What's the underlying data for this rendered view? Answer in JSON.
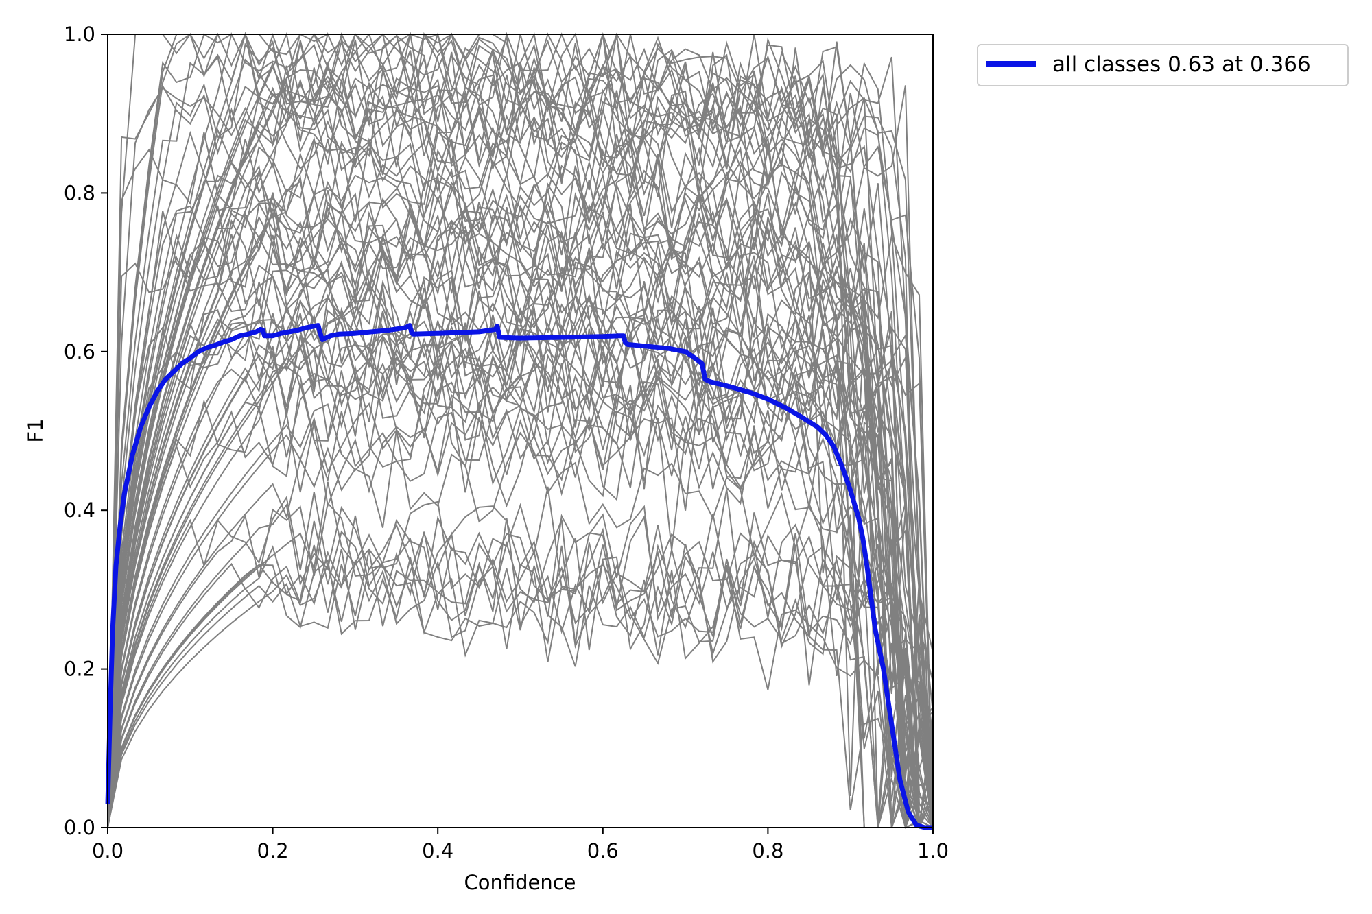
{
  "chart_data": {
    "type": "line",
    "title": "",
    "xlabel": "Confidence",
    "ylabel": "F1",
    "xlim": [
      0.0,
      1.0
    ],
    "ylim": [
      0.0,
      1.0
    ],
    "xticks": [
      "0.0",
      "0.2",
      "0.4",
      "0.6",
      "0.8",
      "1.0"
    ],
    "yticks": [
      "0.0",
      "0.2",
      "0.4",
      "0.6",
      "0.8",
      "1.0"
    ],
    "grid": false,
    "legend": {
      "placement": "outside-top-right",
      "entries": [
        "all classes 0.63 at 0.366"
      ]
    },
    "colors": {
      "per_class": "#808080",
      "all_classes": "#0a14e6"
    },
    "series": [
      {
        "name": "all classes 0.63 at 0.366",
        "color": "#0a14e6",
        "x": [
          0.0,
          0.003,
          0.006,
          0.01,
          0.015,
          0.02,
          0.03,
          0.04,
          0.05,
          0.06,
          0.07,
          0.08,
          0.09,
          0.1,
          0.11,
          0.12,
          0.13,
          0.14,
          0.15,
          0.16,
          0.17,
          0.18,
          0.185,
          0.188,
          0.19,
          0.2,
          0.21,
          0.22,
          0.23,
          0.24,
          0.25,
          0.255,
          0.257,
          0.26,
          0.27,
          0.28,
          0.3,
          0.32,
          0.34,
          0.36,
          0.366,
          0.368,
          0.37,
          0.4,
          0.45,
          0.47,
          0.472,
          0.475,
          0.5,
          0.55,
          0.6,
          0.62,
          0.625,
          0.627,
          0.63,
          0.65,
          0.68,
          0.7,
          0.71,
          0.72,
          0.722,
          0.724,
          0.73,
          0.75,
          0.78,
          0.8,
          0.82,
          0.84,
          0.86,
          0.87,
          0.88,
          0.89,
          0.9,
          0.91,
          0.915,
          0.92,
          0.925,
          0.93,
          0.94,
          0.95,
          0.96,
          0.97,
          0.98,
          0.99,
          1.0
        ],
        "y": [
          0.03,
          0.15,
          0.25,
          0.33,
          0.38,
          0.42,
          0.47,
          0.505,
          0.53,
          0.55,
          0.565,
          0.575,
          0.585,
          0.592,
          0.6,
          0.605,
          0.608,
          0.612,
          0.615,
          0.62,
          0.622,
          0.625,
          0.628,
          0.627,
          0.62,
          0.62,
          0.623,
          0.625,
          0.627,
          0.63,
          0.632,
          0.633,
          0.625,
          0.615,
          0.62,
          0.622,
          0.623,
          0.625,
          0.627,
          0.63,
          0.633,
          0.625,
          0.622,
          0.623,
          0.625,
          0.628,
          0.632,
          0.618,
          0.617,
          0.618,
          0.619,
          0.62,
          0.62,
          0.612,
          0.609,
          0.607,
          0.604,
          0.6,
          0.593,
          0.585,
          0.575,
          0.565,
          0.562,
          0.557,
          0.548,
          0.54,
          0.53,
          0.518,
          0.505,
          0.495,
          0.48,
          0.455,
          0.425,
          0.39,
          0.365,
          0.33,
          0.29,
          0.25,
          0.2,
          0.13,
          0.06,
          0.02,
          0.003,
          0.0,
          0.0
        ]
      }
    ],
    "per_class_curves_note_visible": false
  }
}
